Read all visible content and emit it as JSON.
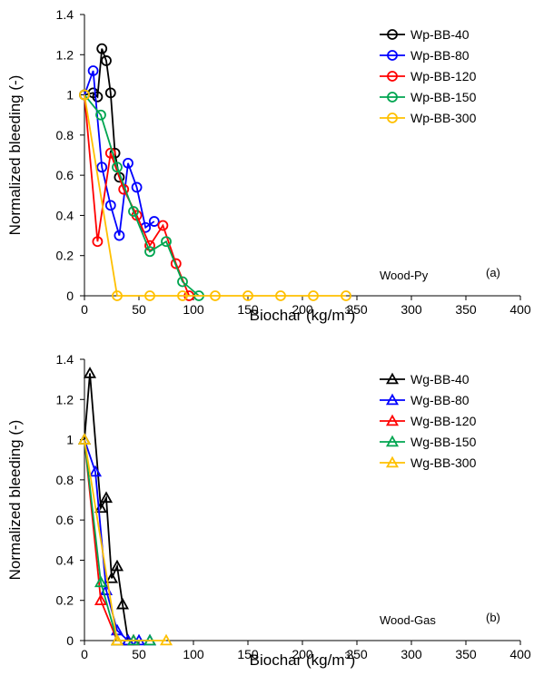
{
  "chart_data": [
    {
      "type": "line",
      "panel_label": "(a)",
      "annotation": "Wood-Py",
      "marker": "circle",
      "xlabel": "Biochar (kg/m",
      "xlabel_sup": "3",
      "xlabel_end": ")",
      "ylabel": "Normalized bleeding (-)",
      "xlim": [
        0,
        400
      ],
      "ylim": [
        0,
        1.4
      ],
      "x_ticks": [
        0,
        50,
        100,
        150,
        200,
        250,
        300,
        350,
        400
      ],
      "y_ticks": [
        0,
        0.2,
        0.4,
        0.6,
        0.8,
        1,
        1.2,
        1.4
      ],
      "y_tick_labels": [
        "0",
        "0.2",
        "0.4",
        "0.6",
        "0.8",
        "1",
        "1.2",
        "1.4"
      ],
      "legend_position": "top-right",
      "series": [
        {
          "name": "Wp-BB-40",
          "color": "#000000",
          "x": [
            0,
            8,
            12,
            16,
            20,
            24,
            28,
            32
          ],
          "y": [
            1.0,
            1.01,
            0.99,
            1.23,
            1.17,
            1.01,
            0.71,
            0.59
          ]
        },
        {
          "name": "Wp-BB-80",
          "color": "#0000ff",
          "x": [
            0,
            8,
            16,
            24,
            32,
            40,
            48,
            56,
            64
          ],
          "y": [
            1.0,
            1.12,
            0.64,
            0.45,
            0.3,
            0.66,
            0.54,
            0.34,
            0.37
          ]
        },
        {
          "name": "Wp-BB-120",
          "color": "#ff0000",
          "x": [
            0,
            12,
            24,
            36,
            48,
            60,
            72,
            84,
            96
          ],
          "y": [
            1.0,
            0.27,
            0.71,
            0.53,
            0.4,
            0.25,
            0.35,
            0.16,
            0.0
          ]
        },
        {
          "name": "Wp-BB-150",
          "color": "#00a550",
          "x": [
            0,
            15,
            30,
            45,
            60,
            75,
            90,
            105
          ],
          "y": [
            1.0,
            0.9,
            0.64,
            0.42,
            0.22,
            0.27,
            0.07,
            0.0
          ]
        },
        {
          "name": "Wp-BB-300",
          "color": "#ffc000",
          "x": [
            0,
            30,
            60,
            90,
            120,
            150,
            180,
            210,
            240
          ],
          "y": [
            1.0,
            0.0,
            0.0,
            0.0,
            0.0,
            0.0,
            0.0,
            0.0,
            0.0
          ]
        }
      ]
    },
    {
      "type": "line",
      "panel_label": "(b)",
      "annotation": "Wood-Gas",
      "marker": "triangle",
      "xlabel": "Biochar (kg/m",
      "xlabel_sup": "3",
      "xlabel_end": ")",
      "ylabel": "Normalized bleeding (-)",
      "xlim": [
        0,
        400
      ],
      "ylim": [
        0,
        1.4
      ],
      "x_ticks": [
        0,
        50,
        100,
        150,
        200,
        250,
        300,
        350,
        400
      ],
      "y_ticks": [
        0,
        0.2,
        0.4,
        0.6,
        0.8,
        1,
        1.2,
        1.4
      ],
      "y_tick_labels": [
        "0",
        "0.2",
        "0.4",
        "0.6",
        "0.8",
        "1",
        "1.2",
        "1.4"
      ],
      "legend_position": "top-right",
      "series": [
        {
          "name": "Wg-BB-40",
          "color": "#000000",
          "x": [
            0,
            5,
            15,
            20,
            25,
            30,
            35,
            40
          ],
          "y": [
            1.0,
            1.33,
            0.66,
            0.71,
            0.31,
            0.37,
            0.18,
            0.0
          ]
        },
        {
          "name": "Wg-BB-80",
          "color": "#0000ff",
          "x": [
            0,
            10,
            20,
            30,
            40,
            50,
            60
          ],
          "y": [
            1.0,
            0.84,
            0.25,
            0.05,
            0.0,
            0.0,
            0.0
          ]
        },
        {
          "name": "Wg-BB-120",
          "color": "#ff0000",
          "x": [
            0,
            15,
            30,
            45
          ],
          "y": [
            1.0,
            0.2,
            0.0,
            0.0
          ]
        },
        {
          "name": "Wg-BB-150",
          "color": "#00a550",
          "x": [
            0,
            15,
            30,
            45,
            60
          ],
          "y": [
            1.0,
            0.29,
            0.0,
            0.0,
            0.0
          ]
        },
        {
          "name": "Wg-BB-300",
          "color": "#ffc000",
          "x": [
            0,
            30,
            75
          ],
          "y": [
            1.0,
            0.0,
            0.0
          ]
        }
      ]
    }
  ]
}
